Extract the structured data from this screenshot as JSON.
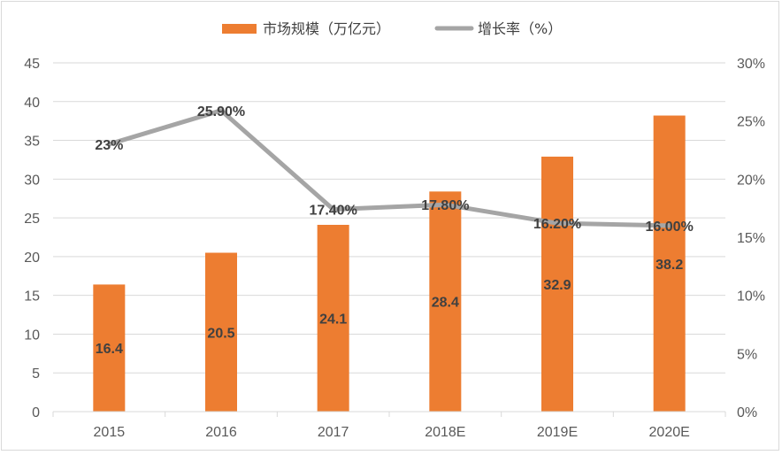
{
  "chart_data": {
    "type": "bar",
    "categories": [
      "2015",
      "2016",
      "2017",
      "2018E",
      "2019E",
      "2020E"
    ],
    "series": [
      {
        "name": "市场规模（万亿元）",
        "type": "bar",
        "axis": "left",
        "color": "#ED7D31",
        "values": [
          16.4,
          20.5,
          24.1,
          28.4,
          32.9,
          38.2
        ],
        "labels": [
          "16.4",
          "20.5",
          "24.1",
          "28.4",
          "32.9",
          "38.2"
        ]
      },
      {
        "name": "增长率（%）",
        "type": "line",
        "axis": "right",
        "color": "#A5A5A5",
        "values": [
          23,
          25.9,
          17.4,
          17.8,
          16.2,
          16.0
        ],
        "labels": [
          "23%",
          "25.90%",
          "17.40%",
          "17.80%",
          "16.20%",
          "16.00%"
        ]
      }
    ],
    "ylim": [
      0,
      45
    ],
    "y_ticks": [
      "0",
      "5",
      "10",
      "15",
      "20",
      "25",
      "30",
      "35",
      "40",
      "45"
    ],
    "y2lim": [
      0,
      30
    ],
    "y2_ticks": [
      "0%",
      "5%",
      "10%",
      "15%",
      "20%",
      "25%",
      "30%"
    ],
    "grid": true,
    "legend_position": "top"
  }
}
